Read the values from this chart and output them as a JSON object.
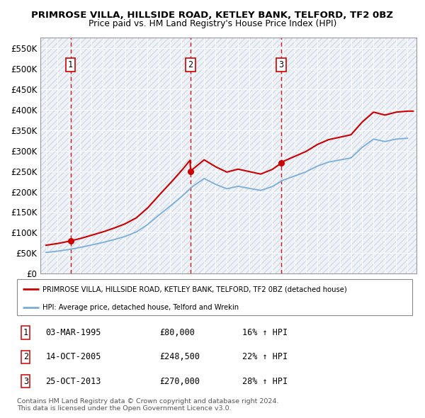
{
  "title": "PRIMROSE VILLA, HILLSIDE ROAD, KETLEY BANK, TELFORD, TF2 0BZ",
  "subtitle": "Price paid vs. HM Land Registry's House Price Index (HPI)",
  "ylim": [
    0,
    575000
  ],
  "yticks": [
    0,
    50000,
    100000,
    150000,
    200000,
    250000,
    300000,
    350000,
    400000,
    450000,
    500000,
    550000
  ],
  "ytick_labels": [
    "£0",
    "£50K",
    "£100K",
    "£150K",
    "£200K",
    "£250K",
    "£300K",
    "£350K",
    "£400K",
    "£450K",
    "£500K",
    "£550K"
  ],
  "xlim_start": 1992.5,
  "xlim_end": 2025.8,
  "purchase_dates": [
    1995.17,
    2005.79,
    2013.81
  ],
  "purchase_prices": [
    80000,
    248500,
    270000
  ],
  "purchase_labels": [
    "1",
    "2",
    "3"
  ],
  "purchase_info": [
    {
      "label": "1",
      "date": "03-MAR-1995",
      "price": "£80,000",
      "hpi": "16% ↑ HPI"
    },
    {
      "label": "2",
      "date": "14-OCT-2005",
      "price": "£248,500",
      "hpi": "22% ↑ HPI"
    },
    {
      "label": "3",
      "date": "25-OCT-2013",
      "price": "£270,000",
      "hpi": "28% ↑ HPI"
    }
  ],
  "red_line_color": "#cc0000",
  "blue_line_color": "#7aaed6",
  "legend_line1": "PRIMROSE VILLA, HILLSIDE ROAD, KETLEY BANK, TELFORD, TF2 0BZ (detached house)",
  "legend_line2": "HPI: Average price, detached house, Telford and Wrekin",
  "footer_line1": "Contains HM Land Registry data © Crown copyright and database right 2024.",
  "footer_line2": "This data is licensed under the Open Government Licence v3.0.",
  "plot_bg_color": "#dce6f1",
  "hatch_color": "#bcc8d8",
  "hpi_years": [
    1993,
    1994,
    1995,
    1996,
    1997,
    1998,
    1999,
    2000,
    2001,
    2002,
    2003,
    2004,
    2005,
    2006,
    2007,
    2008,
    2009,
    2010,
    2011,
    2012,
    2013,
    2014,
    2015,
    2016,
    2017,
    2018,
    2019,
    2020,
    2021,
    2022,
    2023,
    2024,
    2025
  ],
  "hpi_values": [
    52000,
    55000,
    59000,
    64000,
    70000,
    76000,
    83000,
    91000,
    102000,
    120000,
    143000,
    165000,
    188000,
    213000,
    232000,
    218000,
    207000,
    213000,
    208000,
    203000,
    212000,
    228000,
    238000,
    248000,
    262000,
    272000,
    277000,
    282000,
    308000,
    328000,
    322000,
    328000,
    330000
  ]
}
